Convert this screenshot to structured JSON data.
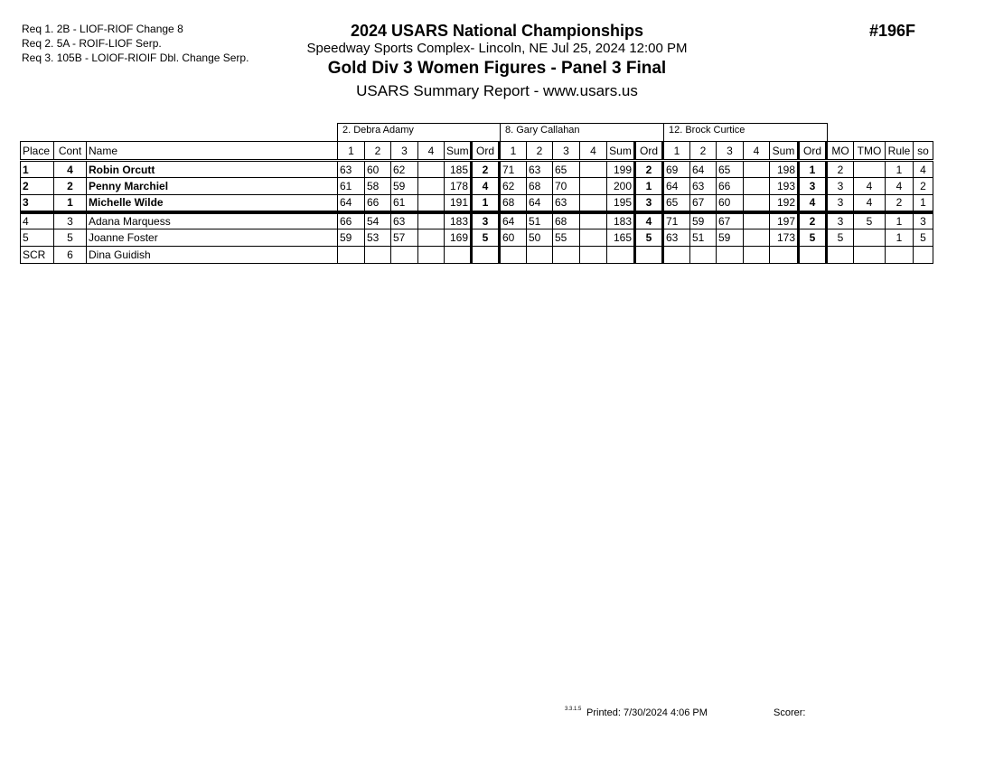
{
  "requirements": [
    "Req  1.  2B - LIOF-RIOF Change 8",
    "Req  2.  5A - ROIF-LIOF Serp.",
    "Req  3.  105B - LOIOF-RIOIF Dbl. Change Serp."
  ],
  "header": {
    "title": "2024 USARS National Championships",
    "venue": "Speedway Sports Complex- Lincoln, NE  Jul 25, 2024  12:00 PM",
    "event": "Gold Div 3 Women Figures - Panel 3 Final",
    "report": "USARS Summary Report - www.usars.us",
    "event_number": "#196F"
  },
  "judges": [
    "2.  Debra Adamy",
    "8.  Gary Callahan",
    "12.  Brock Curtice"
  ],
  "columns": [
    "Place",
    "Cont",
    "Name",
    "1",
    "2",
    "3",
    "4",
    "Sum",
    "Ord",
    "1",
    "2",
    "3",
    "4",
    "Sum",
    "Ord",
    "1",
    "2",
    "3",
    "4",
    "Sum",
    "Ord",
    "MO",
    "TMO",
    "Rule",
    "so"
  ],
  "rows": [
    {
      "bold": true,
      "cells": [
        "1",
        "4",
        "Robin Orcutt",
        "63",
        "60",
        "62",
        "",
        "185",
        "2",
        "71",
        "63",
        "65",
        "",
        "199",
        "2",
        "69",
        "64",
        "65",
        "",
        "198",
        "1",
        "2",
        "",
        "1",
        "4"
      ]
    },
    {
      "bold": true,
      "cells": [
        "2",
        "2",
        "Penny Marchiel",
        "61",
        "58",
        "59",
        "",
        "178",
        "4",
        "62",
        "68",
        "70",
        "",
        "200",
        "1",
        "64",
        "63",
        "66",
        "",
        "193",
        "3",
        "3",
        "4",
        "4",
        "2"
      ]
    },
    {
      "bold": true,
      "cut": true,
      "cells": [
        "3",
        "1",
        "Michelle Wilde",
        "64",
        "66",
        "61",
        "",
        "191",
        "1",
        "68",
        "64",
        "63",
        "",
        "195",
        "3",
        "65",
        "67",
        "60",
        "",
        "192",
        "4",
        "3",
        "4",
        "2",
        "1"
      ]
    },
    {
      "bold": false,
      "cells": [
        "4",
        "3",
        "Adana Marquess",
        "66",
        "54",
        "63",
        "",
        "183",
        "3",
        "64",
        "51",
        "68",
        "",
        "183",
        "4",
        "71",
        "59",
        "67",
        "",
        "197",
        "2",
        "3",
        "5",
        "1",
        "3"
      ]
    },
    {
      "bold": false,
      "cells": [
        "5",
        "5",
        "Joanne Foster",
        "59",
        "53",
        "57",
        "",
        "169",
        "5",
        "60",
        "50",
        "55",
        "",
        "165",
        "5",
        "63",
        "51",
        "59",
        "",
        "173",
        "5",
        "5",
        "",
        "1",
        "5"
      ]
    },
    {
      "bold": false,
      "cells": [
        "SCR",
        "6",
        "Dina Guidish",
        "",
        "",
        "",
        "",
        "",
        "",
        "",
        "",
        "",
        "",
        "",
        "",
        "",
        "",
        "",
        "",
        "",
        "",
        "",
        "",
        "",
        ""
      ]
    }
  ],
  "footer": {
    "version": "3.3.1.5",
    "printed": "Printed:  7/30/2024  4:06 PM",
    "scorer": "Scorer:"
  }
}
